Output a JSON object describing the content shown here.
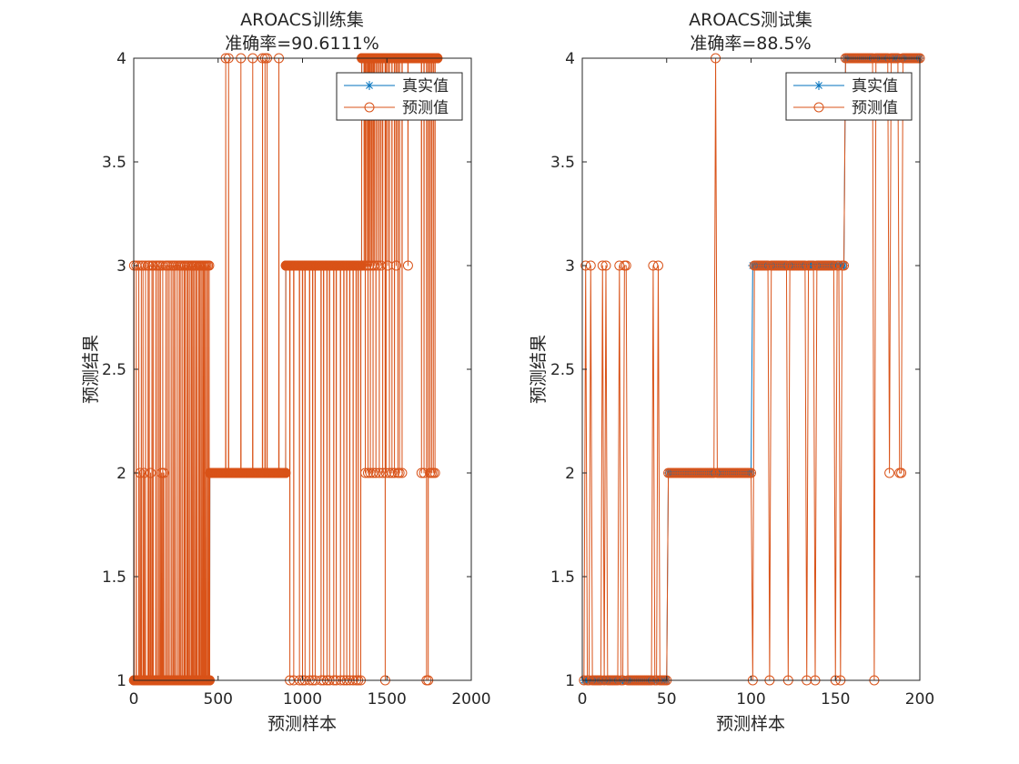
{
  "colors": {
    "true_series": "#0072BD",
    "pred_series": "#D95319",
    "axis": "#262626",
    "background": "#ffffff"
  },
  "chart_data": [
    {
      "type": "line",
      "title": "AROACS训练集",
      "subtitle": "准确率=90.6111%",
      "xlabel": "预测样本",
      "ylabel": "预测结果",
      "xlim": [
        0,
        2000
      ],
      "ylim": [
        1,
        4
      ],
      "xticks": [
        "0",
        "500",
        "1000",
        "1500",
        "2000"
      ],
      "yticks": [
        "1",
        "1.5",
        "2",
        "2.5",
        "3",
        "3.5",
        "4"
      ],
      "legend_position": "top-right",
      "grid": false,
      "n_samples": 1800,
      "series": [
        {
          "name": "真实值",
          "marker": "asterisk",
          "segments": [
            {
              "from": 1,
              "to": 450,
              "value": 1
            },
            {
              "from": 451,
              "to": 900,
              "value": 2
            },
            {
              "from": 901,
              "to": 1350,
              "value": 3
            },
            {
              "from": 1351,
              "to": 1800,
              "value": 4
            }
          ]
        },
        {
          "name": "预测值",
          "marker": "circle",
          "segments": [
            {
              "from": 1,
              "to": 450,
              "value": 1
            },
            {
              "from": 451,
              "to": 900,
              "value": 2
            },
            {
              "from": 901,
              "to": 1350,
              "value": 3
            },
            {
              "from": 1351,
              "to": 1800,
              "value": 4
            }
          ],
          "deviations": [
            [
              2,
              3
            ],
            [
              15,
              3
            ],
            [
              30,
              3
            ],
            [
              38,
              2
            ],
            [
              45,
              3
            ],
            [
              55,
              3
            ],
            [
              62,
              2
            ],
            [
              70,
              3
            ],
            [
              85,
              3
            ],
            [
              92,
              3
            ],
            [
              100,
              2
            ],
            [
              108,
              3
            ],
            [
              115,
              3
            ],
            [
              130,
              3
            ],
            [
              140,
              3
            ],
            [
              150,
              3
            ],
            [
              158,
              3
            ],
            [
              165,
              2
            ],
            [
              172,
              3
            ],
            [
              178,
              2
            ],
            [
              190,
              3
            ],
            [
              200,
              3
            ],
            [
              210,
              3
            ],
            [
              222,
              3
            ],
            [
              232,
              3
            ],
            [
              240,
              3
            ],
            [
              250,
              3
            ],
            [
              262,
              3
            ],
            [
              272,
              3
            ],
            [
              280,
              3
            ],
            [
              290,
              3
            ],
            [
              300,
              3
            ],
            [
              305,
              3
            ],
            [
              315,
              3
            ],
            [
              322,
              3
            ],
            [
              330,
              3
            ],
            [
              340,
              3
            ],
            [
              345,
              3
            ],
            [
              352,
              3
            ],
            [
              360,
              3
            ],
            [
              368,
              3
            ],
            [
              375,
              3
            ],
            [
              385,
              3
            ],
            [
              390,
              3
            ],
            [
              398,
              3
            ],
            [
              405,
              3
            ],
            [
              412,
              3
            ],
            [
              418,
              3
            ],
            [
              425,
              3
            ],
            [
              432,
              3
            ],
            [
              440,
              3
            ],
            [
              447,
              3
            ],
            [
              545,
              4
            ],
            [
              562,
              4
            ],
            [
              635,
              4
            ],
            [
              705,
              4
            ],
            [
              763,
              4
            ],
            [
              778,
              4
            ],
            [
              790,
              4
            ],
            [
              860,
              4
            ],
            [
              925,
              1
            ],
            [
              948,
              1
            ],
            [
              982,
              1
            ],
            [
              1000,
              1
            ],
            [
              1015,
              1
            ],
            [
              1042,
              1
            ],
            [
              1060,
              1
            ],
            [
              1075,
              1
            ],
            [
              1110,
              1
            ],
            [
              1125,
              1
            ],
            [
              1145,
              1
            ],
            [
              1160,
              1
            ],
            [
              1185,
              1
            ],
            [
              1200,
              1
            ],
            [
              1225,
              1
            ],
            [
              1245,
              1
            ],
            [
              1262,
              1
            ],
            [
              1280,
              1
            ],
            [
              1300,
              1
            ],
            [
              1318,
              1
            ],
            [
              1330,
              1
            ],
            [
              1345,
              1
            ],
            [
              1365,
              3
            ],
            [
              1372,
              2
            ],
            [
              1380,
              3
            ],
            [
              1388,
              2
            ],
            [
              1395,
              3
            ],
            [
              1402,
              2
            ],
            [
              1410,
              3
            ],
            [
              1418,
              2
            ],
            [
              1425,
              3
            ],
            [
              1435,
              2
            ],
            [
              1445,
              3
            ],
            [
              1455,
              2
            ],
            [
              1465,
              3
            ],
            [
              1475,
              2
            ],
            [
              1490,
              1
            ],
            [
              1495,
              2
            ],
            [
              1505,
              3
            ],
            [
              1515,
              2
            ],
            [
              1530,
              2
            ],
            [
              1545,
              2
            ],
            [
              1555,
              3
            ],
            [
              1565,
              2
            ],
            [
              1575,
              2
            ],
            [
              1590,
              2
            ],
            [
              1625,
              3
            ],
            [
              1705,
              2
            ],
            [
              1720,
              2
            ],
            [
              1735,
              1
            ],
            [
              1745,
              1
            ],
            [
              1755,
              2
            ],
            [
              1765,
              2
            ],
            [
              1775,
              2
            ],
            [
              1785,
              2
            ]
          ]
        }
      ]
    },
    {
      "type": "line",
      "title": "AROACS测试集",
      "subtitle": "准确率=88.5%",
      "xlabel": "预测样本",
      "ylabel": "预测结果",
      "xlim": [
        0,
        200
      ],
      "ylim": [
        1,
        4
      ],
      "xticks": [
        "0",
        "50",
        "100",
        "150",
        "200"
      ],
      "yticks": [
        "1",
        "1.5",
        "2",
        "2.5",
        "3",
        "3.5",
        "4"
      ],
      "legend_position": "top-right",
      "grid": false,
      "n_samples": 200,
      "series": [
        {
          "name": "真实值",
          "marker": "asterisk",
          "segments": [
            {
              "from": 1,
              "to": 50,
              "value": 1
            },
            {
              "from": 51,
              "to": 100,
              "value": 2
            },
            {
              "from": 101,
              "to": 155,
              "value": 3
            },
            {
              "from": 156,
              "to": 200,
              "value": 4
            }
          ]
        },
        {
          "name": "预测值",
          "marker": "circle",
          "segments": [
            {
              "from": 1,
              "to": 50,
              "value": 1
            },
            {
              "from": 51,
              "to": 100,
              "value": 2
            },
            {
              "from": 101,
              "to": 155,
              "value": 3
            },
            {
              "from": 156,
              "to": 200,
              "value": 4
            }
          ],
          "deviations": [
            [
              2,
              3
            ],
            [
              5,
              3
            ],
            [
              12,
              3
            ],
            [
              14,
              3
            ],
            [
              22,
              3
            ],
            [
              25,
              3
            ],
            [
              26,
              3
            ],
            [
              42,
              3
            ],
            [
              45,
              3
            ],
            [
              79,
              4
            ],
            [
              101,
              1
            ],
            [
              111,
              1
            ],
            [
              122,
              1
            ],
            [
              133,
              1
            ],
            [
              138,
              1
            ],
            [
              150,
              1
            ],
            [
              153,
              1
            ],
            [
              173,
              1
            ],
            [
              182,
              2
            ],
            [
              188,
              2
            ],
            [
              189,
              2
            ]
          ]
        }
      ]
    }
  ]
}
